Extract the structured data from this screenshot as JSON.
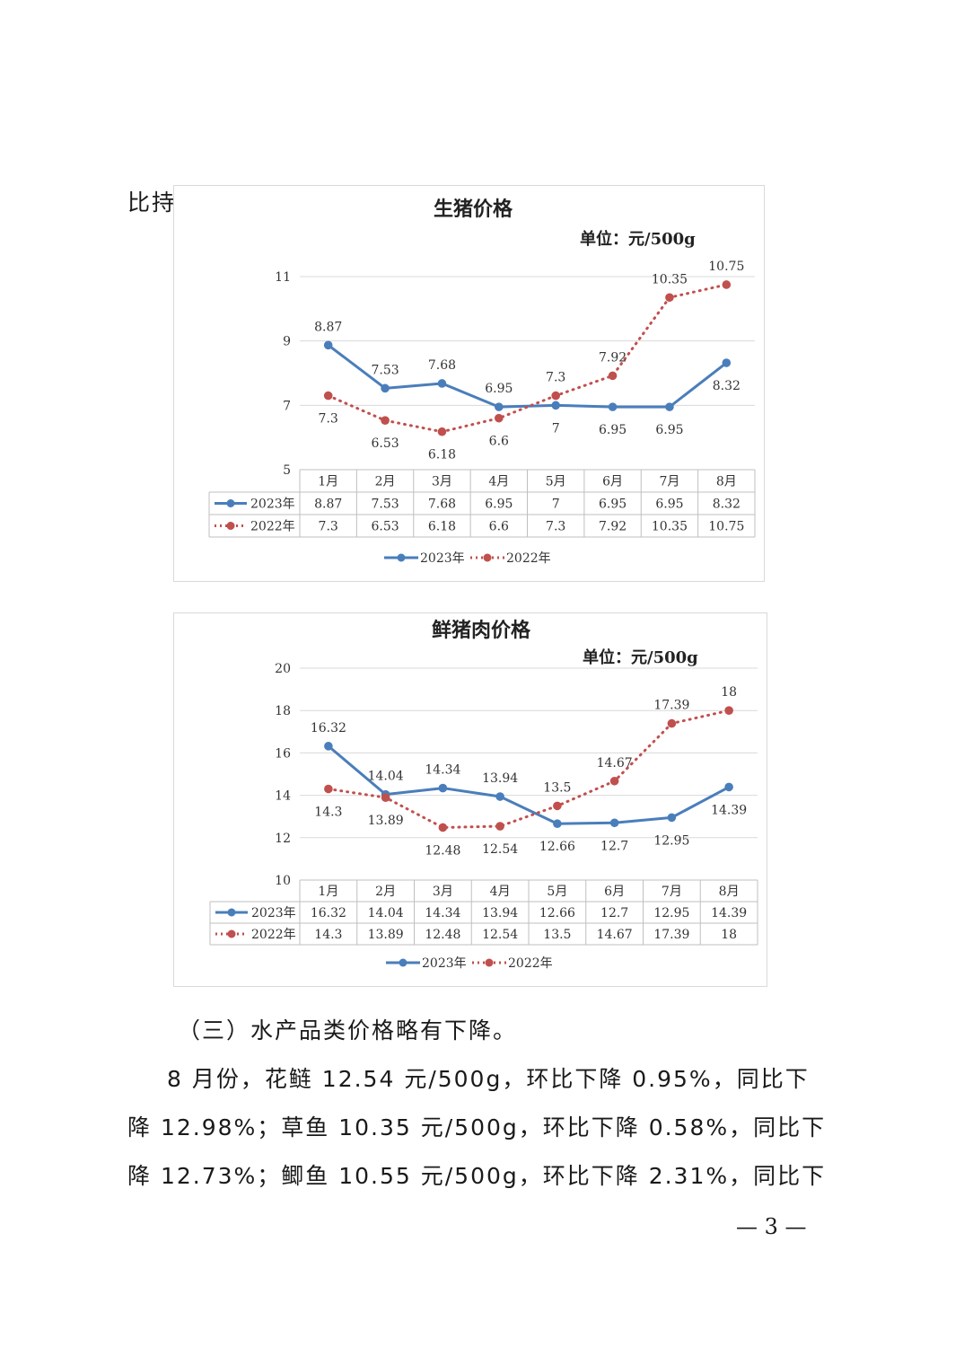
{
  "fragment_text": "比持",
  "chart_data": [
    {
      "type": "line",
      "title": "生猪价格",
      "unit": "单位：元/500g",
      "categories": [
        "1月",
        "2月",
        "3月",
        "4月",
        "5月",
        "6月",
        "7月",
        "8月"
      ],
      "ylim": [
        5,
        11
      ],
      "yticks": [
        5,
        7,
        9,
        11
      ],
      "grid": true,
      "legend": "bottom",
      "series": [
        {
          "name": "2023年",
          "values": [
            8.87,
            7.53,
            7.68,
            6.95,
            7,
            6.95,
            6.95,
            8.32
          ],
          "labels": [
            "8.87",
            "7.53",
            "7.68",
            "6.95",
            "7",
            "6.95",
            "6.95",
            "8.32"
          ],
          "color": "#4a7ebb",
          "style": "solid"
        },
        {
          "name": "2022年",
          "values": [
            7.3,
            6.53,
            6.18,
            6.6,
            7.3,
            7.92,
            10.35,
            10.75
          ],
          "labels": [
            "7.3",
            "6.53",
            "6.18",
            "6.6",
            "7.3",
            "7.92",
            "10.35",
            "10.75"
          ],
          "color": "#c0504d",
          "style": "dotted"
        }
      ]
    },
    {
      "type": "line",
      "title": "鲜猪肉价格",
      "unit": "单位：元/500g",
      "categories": [
        "1月",
        "2月",
        "3月",
        "4月",
        "5月",
        "6月",
        "7月",
        "8月"
      ],
      "ylim": [
        10,
        20
      ],
      "yticks": [
        10,
        12,
        14,
        16,
        18,
        20
      ],
      "grid": true,
      "legend": "bottom",
      "series": [
        {
          "name": "2023年",
          "values": [
            16.32,
            14.04,
            14.34,
            13.94,
            12.66,
            12.7,
            12.95,
            14.39
          ],
          "labels": [
            "16.32",
            "14.04",
            "14.34",
            "13.94",
            "12.66",
            "12.7",
            "12.95",
            "14.39"
          ],
          "color": "#4a7ebb",
          "style": "solid"
        },
        {
          "name": "2022年",
          "values": [
            14.3,
            13.89,
            12.48,
            12.54,
            13.5,
            14.67,
            17.39,
            18
          ],
          "labels": [
            "14.3",
            "13.89",
            "12.48",
            "12.54",
            "13.5",
            "14.67",
            "17.39",
            "18"
          ],
          "color": "#c0504d",
          "style": "dotted"
        }
      ]
    }
  ],
  "section_heading": "（三）水产品类价格略有下降。",
  "paragraph_lines": [
    "8 月份，花鲢 12.54 元/500g，环比下降 0.95%，同比下",
    "降 12.98%；草鱼 10.35 元/500g，环比下降 0.58%，同比下",
    "降 12.73%；鲫鱼 10.55 元/500g，环比下降 2.31%，同比下"
  ],
  "page_number": "— 3 —"
}
